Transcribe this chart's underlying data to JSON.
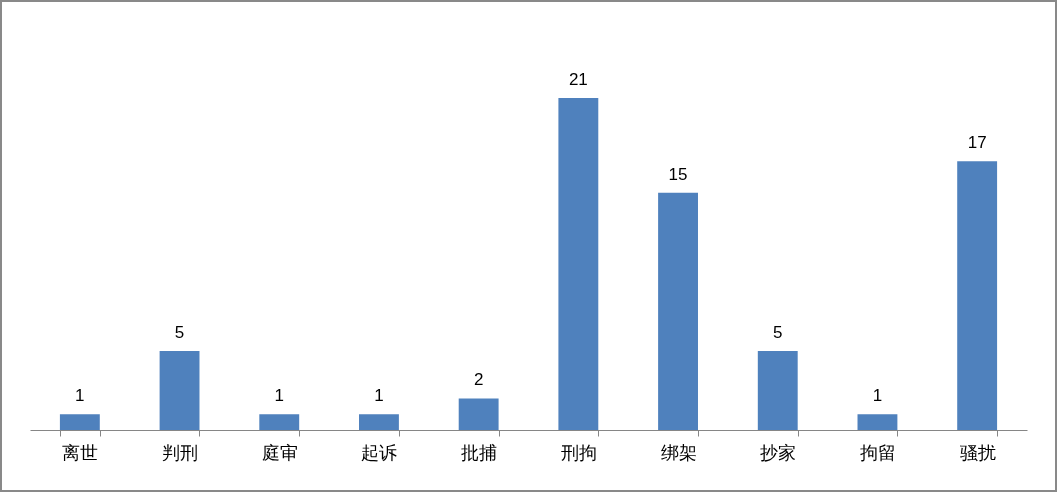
{
  "chart_data": {
    "type": "bar",
    "categories": [
      "离世",
      "判刑",
      "庭审",
      "起诉",
      "批捕",
      "刑拘",
      "绑架",
      "抄家",
      "拘留",
      "骚扰"
    ],
    "values": [
      1,
      5,
      1,
      1,
      2,
      21,
      15,
      5,
      1,
      17
    ],
    "color": "#4f81bd",
    "data_labels": true,
    "tick_labels": "x"
  }
}
